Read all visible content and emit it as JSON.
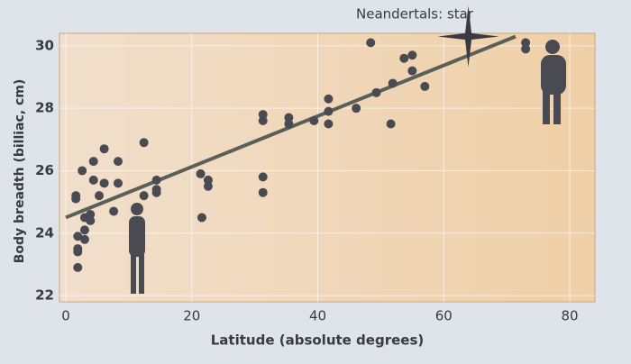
{
  "chart_data": {
    "type": "scatter",
    "annotation": "Neandertals: star",
    "x_label": "Latitude (absolute degrees)",
    "y_label": "Body breadth (billiac, cm)",
    "xlim": [
      -1,
      84
    ],
    "ylim": [
      21.8,
      30.4
    ],
    "xticks": [
      0,
      20,
      40,
      60,
      80
    ],
    "yticks": [
      22,
      24,
      26,
      28,
      30
    ],
    "grid": true,
    "series": [
      {
        "color": "#4a4a52",
        "marker": "circle",
        "x": [
          1.9,
          1.9,
          1.9,
          1.9,
          3,
          3,
          3,
          3.9,
          3.9,
          1.6,
          1.6,
          2.6,
          4.4,
          4.4,
          6.1,
          6.1,
          5.3,
          8.3,
          8.3,
          7.6,
          12.4,
          12.4,
          14.4,
          14.4,
          14.4,
          21.4,
          22.6,
          22.6,
          21.6,
          31.3,
          31.3,
          31.3,
          31.3,
          35.4,
          35.4,
          39.4,
          41.7,
          41.7,
          41.7,
          46.1,
          48.4,
          49.3,
          51.6,
          51.9,
          53.7,
          55,
          55,
          57,
          73,
          73
        ],
        "values": [
          22.9,
          23.4,
          23.5,
          23.9,
          23.8,
          24.1,
          24.5,
          24.6,
          24.4,
          25.1,
          25.2,
          26,
          26.3,
          25.7,
          26.7,
          25.6,
          25.2,
          26.3,
          25.6,
          24.7,
          26.9,
          25.2,
          25.7,
          25.4,
          25.3,
          25.9,
          25.7,
          25.5,
          24.5,
          27.8,
          27.6,
          25.8,
          25.3,
          27.7,
          27.5,
          27.6,
          27.5,
          28.3,
          27.9,
          28,
          30.1,
          28.5,
          27.5,
          28.8,
          29.6,
          29.7,
          29.2,
          28.7,
          30.1,
          29.9
        ]
      },
      {
        "color": "#3a3a44",
        "marker": "star",
        "x": [
          63.9
        ],
        "values": [
          30.3
        ]
      }
    ],
    "trendline": {
      "color": "#5a6058",
      "x": [
        0,
        71.4
      ],
      "values": [
        24.5,
        30.3
      ]
    }
  }
}
